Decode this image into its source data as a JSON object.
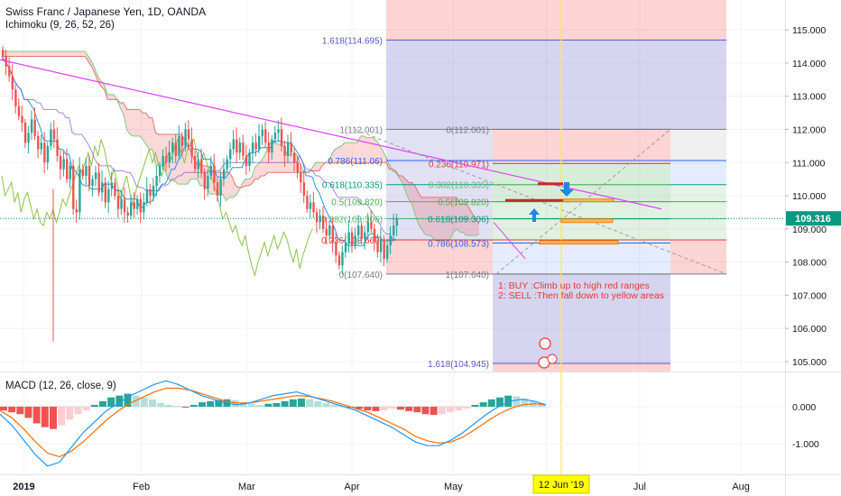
{
  "header": {
    "title": "Swiss Franc / Japanese Yen, 1D, OANDA",
    "indicator": "Ichimoku (9, 26, 52, 26)"
  },
  "macd": {
    "label": "MACD (12, 26, close, 9)",
    "ticks": [
      "0.000",
      "-1.000"
    ],
    "tick_values": [
      0,
      -1
    ],
    "ylim": [
      -1.8,
      0.9
    ],
    "histogram": [
      -0.1,
      -0.15,
      -0.2,
      -0.3,
      -0.45,
      -0.55,
      -0.6,
      -0.5,
      -0.35,
      -0.2,
      -0.1,
      0.05,
      0.15,
      0.25,
      0.3,
      0.35,
      0.3,
      0.25,
      0.2,
      0.1,
      0.05,
      0.02,
      -0.02,
      0.05,
      0.12,
      0.15,
      0.18,
      0.2,
      0.18,
      0.12,
      0.08,
      0.05,
      0.08,
      0.1,
      0.15,
      0.2,
      0.22,
      0.2,
      0.15,
      0.1,
      0.05,
      0.02,
      -0.02,
      -0.06,
      -0.1,
      -0.12,
      -0.1,
      -0.05,
      -0.08,
      -0.12,
      -0.15,
      -0.2,
      -0.22,
      -0.2,
      -0.15,
      -0.1,
      -0.05,
      0.05,
      0.12,
      0.2,
      0.25,
      0.3,
      0.28,
      0.22,
      0.15,
      0.1
    ],
    "macd_line": [
      -0.2,
      -0.5,
      -0.9,
      -1.3,
      -1.6,
      -1.5,
      -1.1,
      -0.7,
      -0.4,
      -0.1,
      0.1,
      0.3,
      0.45,
      0.6,
      0.7,
      0.6,
      0.45,
      0.3,
      0.2,
      0.1,
      0.05,
      0.1,
      0.2,
      0.3,
      0.35,
      0.4,
      0.3,
      0.2,
      0.1,
      0.0,
      -0.1,
      -0.25,
      -0.4,
      -0.55,
      -0.75,
      -0.95,
      -1.05,
      -1.05,
      -0.9,
      -0.7,
      -0.45,
      -0.2,
      0.0,
      0.15,
      0.2,
      0.15,
      0.05
    ],
    "signal_line": [
      -0.1,
      -0.3,
      -0.6,
      -0.95,
      -1.25,
      -1.35,
      -1.2,
      -0.95,
      -0.65,
      -0.35,
      -0.1,
      0.1,
      0.25,
      0.4,
      0.5,
      0.5,
      0.45,
      0.35,
      0.25,
      0.15,
      0.1,
      0.1,
      0.15,
      0.2,
      0.25,
      0.3,
      0.28,
      0.22,
      0.15,
      0.05,
      -0.05,
      -0.15,
      -0.3,
      -0.45,
      -0.6,
      -0.8,
      -0.92,
      -0.98,
      -0.95,
      -0.82,
      -0.62,
      -0.4,
      -0.2,
      -0.05,
      0.05,
      0.08,
      0.05
    ]
  },
  "fib_upper": {
    "levels": [
      {
        "label": "1.618(114.695)",
        "value": 114.695,
        "color": "#5b58c4"
      },
      {
        "label": "1(112.001)",
        "value": 112.001,
        "color": "#787b86"
      },
      {
        "label": "0.786(111.06)",
        "value": 111.06,
        "color": "#2962ff"
      },
      {
        "label": "0.618(110.335)",
        "value": 110.335,
        "color": "#089981"
      },
      {
        "label": "0.5(109.820)",
        "value": 109.82,
        "color": "#4caf50"
      },
      {
        "label": "0.382(109.306)",
        "value": 109.306,
        "color": "#66bb6a"
      },
      {
        "label": "0.236(108.669)",
        "value": 108.669,
        "color": "#e53935"
      },
      {
        "label": "0(107.640)",
        "value": 107.64,
        "color": "#787b86"
      }
    ]
  },
  "fib_lower": {
    "levels": [
      {
        "label": "0(112.001)",
        "value": 112.001,
        "color": "#787b86"
      },
      {
        "label": "0.236(110.971)",
        "value": 110.971,
        "color": "#e53935"
      },
      {
        "label": "0.382(110.335)",
        "value": 110.335,
        "color": "#66bb6a"
      },
      {
        "label": "0.5(109.820)",
        "value": 109.82,
        "color": "#4caf50"
      },
      {
        "label": "0.618(109.306)",
        "value": 109.306,
        "color": "#089981"
      },
      {
        "label": "0.786(108.573)",
        "value": 108.573,
        "color": "#2962ff"
      },
      {
        "label": "1(107.640)",
        "value": 107.64,
        "color": "#787b86"
      },
      {
        "label": "1.618(104.945)",
        "value": 104.945,
        "color": "#5b58c4"
      }
    ]
  },
  "annotation": {
    "line1": "1: BUY :Climb up to high red ranges",
    "line2": "2: SELL :Then fall down to yellow areas",
    "color": "#e53935"
  },
  "chart_data": {
    "type": "candlestick",
    "title": "Swiss Franc / Japanese Yen, 1D, OANDA",
    "ylim": [
      104.7,
      115.9
    ],
    "y_ticks": [
      "115.000",
      "114.000",
      "113.000",
      "112.000",
      "111.000",
      "110.000",
      "109.000",
      "108.000",
      "107.000",
      "106.000",
      "105.000"
    ],
    "y_tick_values": [
      115,
      114,
      113,
      112,
      111,
      110,
      109,
      108,
      107,
      106,
      105
    ],
    "x_ticks": [
      "2019",
      "Feb",
      "Mar",
      "Apr",
      "May",
      "Jun",
      "Jul",
      "Aug"
    ],
    "x_tick_index": [
      5,
      34,
      60,
      86,
      111,
      134,
      157,
      182
    ],
    "current_price": {
      "label": "109.316",
      "value": 109.316
    },
    "crosshair": {
      "label": "12 Jun '19",
      "index": 141
    },
    "ohlc_close": [
      114.2,
      113.9,
      113.6,
      113.2,
      112.7,
      112.4,
      112.2,
      111.6,
      111.9,
      112.3,
      111.8,
      111.4,
      111.6,
      111.0,
      111.5,
      112.0,
      111.7,
      111.2,
      110.8,
      111.1,
      110.5,
      110.9,
      109.6,
      109.5,
      110.8,
      110.6,
      110.9,
      110.3,
      110.5,
      110.7,
      110.1,
      110.4,
      109.8,
      110.2,
      110.4,
      110.0,
      109.6,
      109.9,
      109.5,
      109.4,
      109.8,
      109.6,
      109.9,
      109.5,
      109.8,
      110.2,
      110.0,
      110.3,
      110.6,
      110.9,
      111.2,
      111.0,
      111.3,
      111.6,
      111.2,
      111.8,
      111.5,
      112.0,
      111.7,
      111.2,
      110.8,
      111.1,
      110.7,
      110.2,
      110.6,
      110.9,
      110.4,
      110.0,
      110.5,
      110.8,
      111.1,
      111.4,
      111.7,
      111.3,
      111.6,
      111.2,
      110.9,
      111.3,
      111.6,
      111.4,
      111.8,
      112.0,
      111.6,
      111.3,
      111.7,
      111.9,
      112.0,
      111.5,
      111.2,
      111.6,
      111.3,
      111.0,
      110.7,
      110.4,
      110.0,
      109.6,
      109.8,
      109.5,
      109.2,
      109.4,
      109.0,
      108.8,
      109.1,
      108.6,
      108.2,
      107.9,
      108.3,
      108.6,
      108.9,
      108.5,
      108.8,
      109.1,
      108.7,
      108.9,
      109.2,
      109.0,
      108.6,
      108.3,
      108.7,
      108.1,
      108.5,
      108.8,
      109.1,
      109.3
    ],
    "ichimoku": {
      "conversion_line": [],
      "note": "Ichimoku cloud and lines drawn from close-based approximation"
    },
    "trendline": {
      "from": {
        "index": 0,
        "value": 114.1
      },
      "to": {
        "index": 150,
        "value": 109.6
      },
      "color": "#e040fb"
    }
  }
}
